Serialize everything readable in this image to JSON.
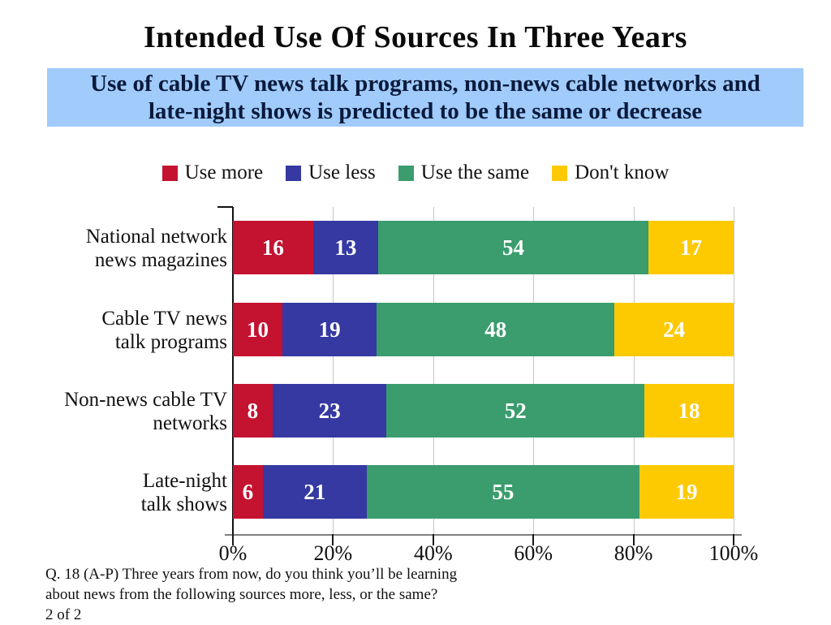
{
  "slide": {
    "title": "Intended Use Of Sources In Three Years",
    "subtitle_line1": "Use of cable TV news talk programs, non-news cable networks and",
    "subtitle_line2": "late-night shows is predicted to be the same or decrease",
    "footer_line1": "Q. 18 (A-P)  Three years from now, do you think you’ll be learning",
    "footer_line2": "about news from the following sources more, less, or the same?",
    "footer_line3": "2 of 2"
  },
  "colors": {
    "use_more_red": "#c41231",
    "use_less_blue": "#3539a1",
    "use_same_green": "#3b9c6e",
    "dont_know_yellow": "#fdca01",
    "subtitle_banner_bg": "#a0cbfa",
    "subtitle_text": "#0a1a3c",
    "gridline": "#c6c6c6",
    "axis_line": "#7f7f7f"
  },
  "chart_data": {
    "type": "bar",
    "orientation": "horizontal",
    "stacked": true,
    "normalized_to_100": true,
    "title": "",
    "xlabel": "",
    "ylabel": "",
    "categories": [
      "National network news magazines",
      "Cable TV news talk programs",
      "Non-news cable TV networks",
      "Late-night talk shows"
    ],
    "category_label_lines": [
      [
        "National network",
        "news magazines"
      ],
      [
        "Cable TV news",
        "talk programs"
      ],
      [
        "Non-news cable TV",
        "networks"
      ],
      [
        "Late-night",
        "talk shows"
      ]
    ],
    "series": [
      {
        "name": "Use more",
        "color": "#c41231",
        "values": [
          16,
          10,
          8,
          6
        ]
      },
      {
        "name": "Use less",
        "color": "#3539a1",
        "values": [
          13,
          19,
          23,
          21
        ]
      },
      {
        "name": "Use the same",
        "color": "#3b9c6e",
        "values": [
          54,
          48,
          52,
          55
        ]
      },
      {
        "name": "Don't know",
        "color": "#fdca01",
        "values": [
          17,
          24,
          18,
          19
        ]
      }
    ],
    "x_axis": {
      "tick_labels": [
        "0%",
        "20%",
        "40%",
        "60%",
        "80%",
        "100%"
      ],
      "range": [
        0,
        100
      ],
      "gridlines": true
    },
    "legend_position": "top"
  }
}
